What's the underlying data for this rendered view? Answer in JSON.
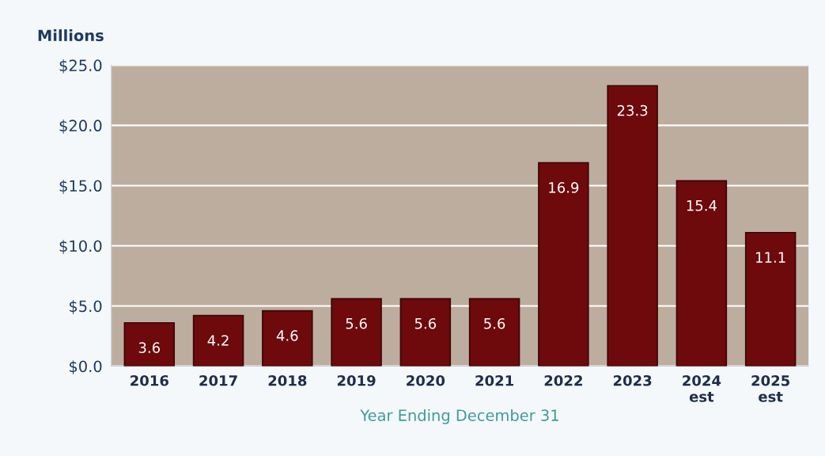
{
  "chart_data": {
    "type": "bar",
    "ylabel": "Millions",
    "xlabel": "Year Ending December 31",
    "categories": [
      "2016",
      "2017",
      "2018",
      "2019",
      "2020",
      "2021",
      "2022",
      "2023",
      "2024\nest",
      "2025\nest"
    ],
    "values": [
      3.6,
      4.2,
      4.6,
      5.6,
      5.6,
      5.6,
      16.9,
      23.3,
      15.4,
      11.1
    ],
    "color": "#6e0a0c",
    "data_labels": true,
    "grid": "y",
    "ylim": [
      0,
      25
    ],
    "yticks": [
      {
        "value": 0,
        "label": "$0.0"
      },
      {
        "value": 5,
        "label": "$5.0"
      },
      {
        "value": 10,
        "label": "$10.0"
      },
      {
        "value": 15,
        "label": "$15.0"
      },
      {
        "value": 20,
        "label": "$20.0"
      },
      {
        "value": 25,
        "label": "$25.0"
      }
    ]
  }
}
